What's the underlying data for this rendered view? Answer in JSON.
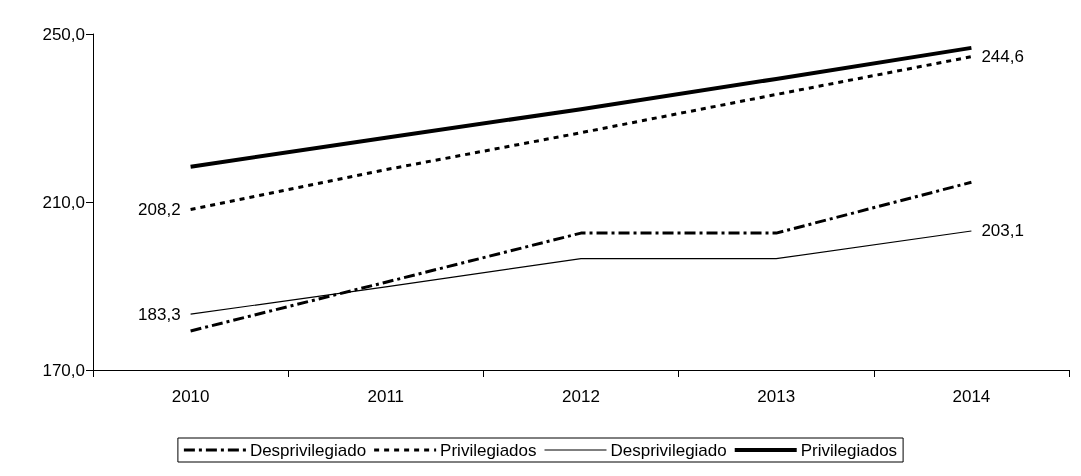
{
  "chart_data": {
    "type": "line",
    "categories": [
      "2010",
      "2011",
      "2012",
      "2013",
      "2014"
    ],
    "series": [
      {
        "name": "Desprivilegiado",
        "color": "#000000",
        "line_style": "dashed",
        "values": [
          179.3,
          190.9,
          202.6,
          202.6,
          214.7
        ]
      },
      {
        "name": "Privilegiados",
        "color": "#000000",
        "line_style": "dotted",
        "values": [
          208.2,
          217.7,
          226.5,
          235.6,
          244.6
        ],
        "value_labels": [
          "208,2",
          null,
          null,
          null,
          "244,6"
        ]
      },
      {
        "name": "Desprivilegiado",
        "color": "#000000",
        "line_style": "solid",
        "values": [
          183.3,
          189.8,
          196.5,
          196.5,
          203.1
        ],
        "value_labels": [
          "183,3",
          null,
          null,
          null,
          "203,1"
        ]
      },
      {
        "name": "Privilegiados",
        "color": "#000000",
        "line_style": "solid",
        "values": [
          218.4,
          225.3,
          232.1,
          239.3,
          246.7
        ]
      }
    ],
    "ylim": [
      170,
      250
    ],
    "yticks": [
      {
        "value": 170,
        "label": "170,0"
      },
      {
        "value": 210,
        "label": "210,0"
      },
      {
        "value": 250,
        "label": "250,0"
      }
    ],
    "grid": false,
    "legend": "bottom",
    "marker": "none"
  }
}
